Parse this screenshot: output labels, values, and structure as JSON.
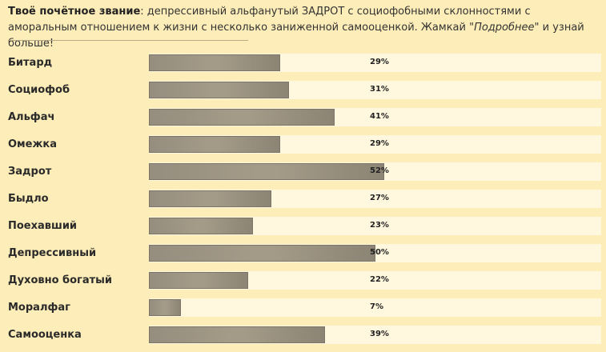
{
  "header": {
    "title_bold": "Твоё почётное звание",
    "title_rest": ": депрессивный альфанутый ЗАДРОТ с социофобными склонностями с аморальным отношением к жизни с несколько заниженной самооценкой. Жамкай \"",
    "link_italic": "Подробнее",
    "tail": "\" и узнай больше!"
  },
  "chart_data": {
    "type": "bar",
    "orientation": "horizontal",
    "categories": [
      "Битард",
      "Социофоб",
      "Альфач",
      "Омежка",
      "Задрот",
      "Быдло",
      "Поехавший",
      "Депрессивный",
      "Духовно богатый",
      "Моралфаг",
      "Самооценка"
    ],
    "values": [
      29,
      31,
      41,
      29,
      52,
      27,
      23,
      50,
      22,
      7,
      39
    ],
    "value_labels": [
      "29%",
      "31%",
      "41%",
      "29%",
      "52%",
      "27%",
      "23%",
      "50%",
      "22%",
      "7%",
      "39%"
    ],
    "unit": "%",
    "xlim": [
      0,
      100
    ],
    "grid": false
  },
  "colors": {
    "background": "#fdedb8",
    "track": "#fff7de",
    "bar": "#a39a87"
  }
}
